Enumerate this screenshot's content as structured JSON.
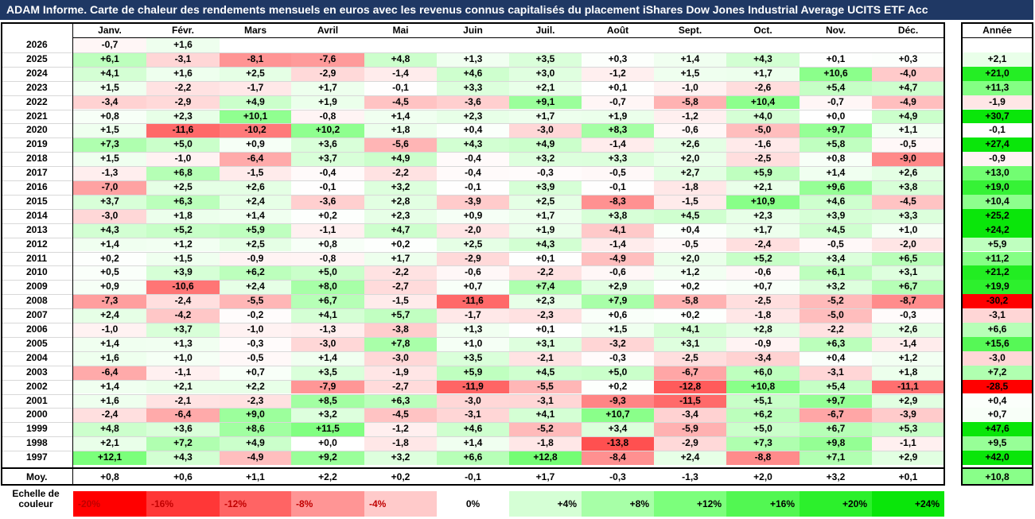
{
  "title": "ADAM Informe. Carte de chaleur des rendements mensuels en euros avec les revenus connus capitalisés du placement iShares Dow Jones Industrial Average UCITS ETF Acc",
  "chart_data": {
    "type": "heatmap",
    "columns": [
      "Janv.",
      "Févr.",
      "Mars",
      "Avril",
      "Mai",
      "Juin",
      "Juil.",
      "Août",
      "Sept.",
      "Oct.",
      "Nov.",
      "Déc."
    ],
    "annual_header": "Année",
    "rows": [
      {
        "year": "2026",
        "months": [
          -0.7,
          1.6,
          null,
          null,
          null,
          null,
          null,
          null,
          null,
          null,
          null,
          null
        ],
        "annual": null
      },
      {
        "year": "2025",
        "months": [
          6.1,
          -3.1,
          -8.1,
          -7.6,
          4.8,
          1.3,
          3.5,
          0.3,
          1.4,
          4.3,
          0.1,
          0.3
        ],
        "annual": 2.1
      },
      {
        "year": "2024",
        "months": [
          4.1,
          1.6,
          2.5,
          -2.9,
          -1.4,
          4.6,
          3.0,
          -1.2,
          1.5,
          1.7,
          10.6,
          -4.0
        ],
        "annual": 21.0
      },
      {
        "year": "2023",
        "months": [
          1.5,
          -2.2,
          -1.7,
          1.7,
          -0.1,
          3.3,
          2.1,
          0.1,
          -1.0,
          -2.6,
          5.4,
          4.7
        ],
        "annual": 11.3
      },
      {
        "year": "2022",
        "months": [
          -3.4,
          -2.9,
          4.9,
          1.9,
          -4.5,
          -3.6,
          9.1,
          -0.7,
          -5.8,
          10.4,
          -0.7,
          -4.9
        ],
        "annual": -1.9
      },
      {
        "year": "2021",
        "months": [
          0.8,
          2.3,
          10.1,
          -0.8,
          1.4,
          2.3,
          1.7,
          1.9,
          -1.2,
          4.0,
          0.0,
          4.9
        ],
        "annual": 30.7
      },
      {
        "year": "2020",
        "months": [
          1.5,
          -11.6,
          -10.2,
          10.2,
          1.8,
          0.4,
          -3.0,
          8.3,
          -0.6,
          -5.0,
          9.7,
          1.1
        ],
        "annual": -0.1
      },
      {
        "year": "2019",
        "months": [
          7.3,
          5.0,
          0.9,
          3.6,
          -5.6,
          4.3,
          4.9,
          -1.4,
          2.6,
          -1.6,
          5.8,
          -0.5
        ],
        "annual": 27.4
      },
      {
        "year": "2018",
        "months": [
          1.5,
          -1.0,
          -6.4,
          3.7,
          4.9,
          -0.4,
          3.2,
          3.3,
          2.0,
          -2.5,
          0.8,
          -9.0
        ],
        "annual": -0.9
      },
      {
        "year": "2017",
        "months": [
          -1.3,
          6.8,
          -1.5,
          -0.4,
          -2.2,
          -0.4,
          -0.3,
          -0.5,
          2.7,
          5.9,
          1.4,
          2.6
        ],
        "annual": 13.0
      },
      {
        "year": "2016",
        "months": [
          -7.0,
          2.5,
          2.6,
          -0.1,
          3.2,
          -0.1,
          3.9,
          -0.1,
          -1.8,
          2.1,
          9.6,
          3.8
        ],
        "annual": 19.0
      },
      {
        "year": "2015",
        "months": [
          3.7,
          6.3,
          2.4,
          -3.6,
          2.8,
          -3.9,
          2.5,
          -8.3,
          -1.5,
          10.9,
          4.6,
          -4.5
        ],
        "annual": 10.4
      },
      {
        "year": "2014",
        "months": [
          -3.0,
          1.8,
          1.4,
          0.2,
          2.3,
          0.9,
          1.7,
          3.8,
          4.5,
          2.3,
          3.9,
          3.3
        ],
        "annual": 25.2
      },
      {
        "year": "2013",
        "months": [
          4.3,
          5.2,
          5.9,
          -1.1,
          4.7,
          -2.0,
          1.9,
          -4.1,
          0.4,
          1.7,
          4.5,
          1.0
        ],
        "annual": 24.2
      },
      {
        "year": "2012",
        "months": [
          1.4,
          1.2,
          2.5,
          0.8,
          0.2,
          2.5,
          4.3,
          -1.4,
          -0.5,
          -2.4,
          -0.5,
          -2.0
        ],
        "annual": 5.9
      },
      {
        "year": "2011",
        "months": [
          0.2,
          1.5,
          -0.9,
          -0.8,
          1.7,
          -2.9,
          0.1,
          -4.9,
          2.0,
          5.2,
          3.4,
          6.5
        ],
        "annual": 11.2
      },
      {
        "year": "2010",
        "months": [
          0.5,
          3.9,
          6.2,
          5.0,
          -2.2,
          -0.6,
          -2.2,
          -0.6,
          1.2,
          -0.6,
          6.1,
          3.1
        ],
        "annual": 21.2
      },
      {
        "year": "2009",
        "months": [
          0.9,
          -10.6,
          2.4,
          8.0,
          -2.7,
          0.7,
          7.4,
          2.9,
          0.2,
          0.7,
          3.2,
          6.7
        ],
        "annual": 19.9
      },
      {
        "year": "2008",
        "months": [
          -7.3,
          -2.4,
          -5.5,
          6.7,
          -1.5,
          -11.6,
          2.3,
          7.9,
          -5.8,
          -2.5,
          -5.2,
          -8.7
        ],
        "annual": -30.2
      },
      {
        "year": "2007",
        "months": [
          2.4,
          -4.2,
          -0.2,
          4.1,
          5.7,
          -1.7,
          -2.3,
          0.6,
          0.2,
          -1.8,
          -5.0,
          -0.3
        ],
        "annual": -3.1
      },
      {
        "year": "2006",
        "months": [
          -1.0,
          3.7,
          -1.0,
          -1.3,
          -3.8,
          1.3,
          0.1,
          1.5,
          4.1,
          2.8,
          -2.2,
          2.6
        ],
        "annual": 6.6
      },
      {
        "year": "2005",
        "months": [
          1.4,
          1.3,
          -0.3,
          -3.0,
          7.8,
          1.0,
          3.1,
          -3.2,
          3.1,
          -0.9,
          6.3,
          -1.4
        ],
        "annual": 15.6
      },
      {
        "year": "2004",
        "months": [
          1.6,
          1.0,
          -0.5,
          1.4,
          -3.0,
          3.5,
          -2.1,
          -0.3,
          -2.5,
          -3.4,
          0.4,
          1.2
        ],
        "annual": -3.0
      },
      {
        "year": "2003",
        "months": [
          -6.4,
          -1.1,
          0.7,
          3.5,
          -1.9,
          5.9,
          4.5,
          5.0,
          -6.7,
          6.0,
          -3.1,
          1.8
        ],
        "annual": 7.2
      },
      {
        "year": "2002",
        "months": [
          1.4,
          2.1,
          2.2,
          -7.9,
          -2.7,
          -11.9,
          -5.5,
          0.2,
          -12.8,
          10.8,
          5.4,
          -11.1
        ],
        "annual": -28.5
      },
      {
        "year": "2001",
        "months": [
          1.6,
          -2.1,
          -2.3,
          8.5,
          6.3,
          -3.0,
          -3.1,
          -9.3,
          -11.5,
          5.1,
          9.7,
          2.9
        ],
        "annual": 0.4
      },
      {
        "year": "2000",
        "months": [
          -2.4,
          -6.4,
          9.0,
          3.2,
          -4.5,
          -3.1,
          4.1,
          10.7,
          -3.4,
          6.2,
          -6.7,
          -3.9
        ],
        "annual": 0.7
      },
      {
        "year": "1999",
        "months": [
          4.8,
          3.6,
          8.6,
          11.5,
          -1.2,
          4.6,
          -5.2,
          3.4,
          -5.9,
          5.0,
          6.7,
          5.3
        ],
        "annual": 47.6
      },
      {
        "year": "1998",
        "months": [
          2.1,
          7.2,
          4.9,
          0.0,
          -1.8,
          1.4,
          -1.8,
          -13.8,
          -2.9,
          7.3,
          9.8,
          -1.1
        ],
        "annual": 9.5
      },
      {
        "year": "1997",
        "months": [
          12.1,
          4.3,
          -4.9,
          9.2,
          3.2,
          6.6,
          12.8,
          -8.4,
          2.4,
          -8.8,
          7.1,
          2.9
        ],
        "annual": 42.0
      }
    ],
    "average": {
      "label": "Moy.",
      "months": [
        0.8,
        0.6,
        1.1,
        2.2,
        0.2,
        -0.1,
        1.7,
        -0.3,
        -1.3,
        2.0,
        3.2,
        0.1
      ],
      "annual": 10.8
    },
    "color_scale": {
      "label": "Echelle de\ncouleur",
      "steps": [
        {
          "value": -20,
          "text": "-20%",
          "color": "#ff0000"
        },
        {
          "value": -16,
          "text": "-16%",
          "color": "#ff3737"
        },
        {
          "value": -12,
          "text": "-12%",
          "color": "#ff6464"
        },
        {
          "value": -8,
          "text": "-8%",
          "color": "#ff9595"
        },
        {
          "value": -4,
          "text": "-4%",
          "color": "#ffcaca"
        },
        {
          "value": 0,
          "text": "0%",
          "color": "#ffffff"
        },
        {
          "value": 4,
          "text": "+4%",
          "color": "#d5ffd5"
        },
        {
          "value": 8,
          "text": "+8%",
          "color": "#a7ffa7"
        },
        {
          "value": 12,
          "text": "+12%",
          "color": "#7cff7c"
        },
        {
          "value": 16,
          "text": "+16%",
          "color": "#52f752"
        },
        {
          "value": 20,
          "text": "+20%",
          "color": "#2cf02c"
        },
        {
          "value": 24,
          "text": "+24%",
          "color": "#0ae60a"
        }
      ]
    }
  }
}
